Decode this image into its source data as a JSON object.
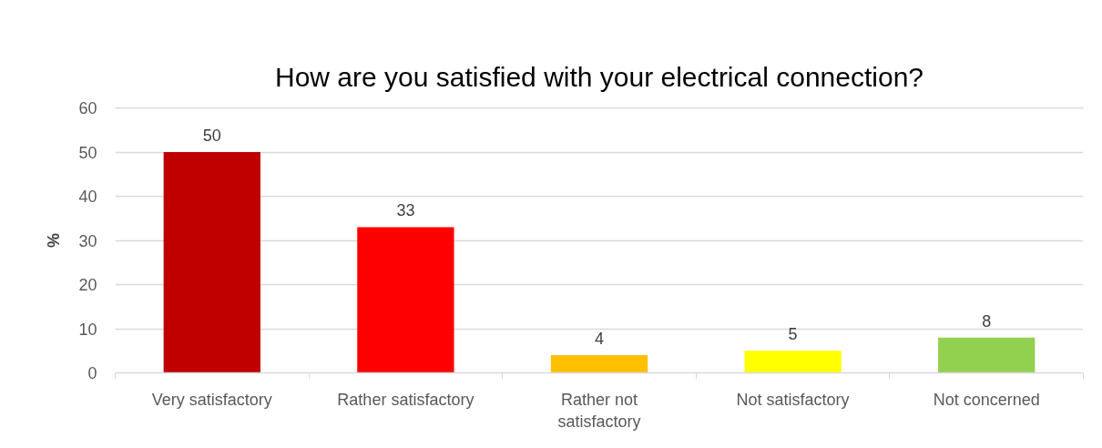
{
  "chart_data": {
    "type": "bar",
    "title": "How are you satisfied with your electrical connection?",
    "ylabel": "%",
    "categories": [
      "Very satisfactory",
      "Rather satisfactory",
      "Rather not satisfactory",
      "Not satisfactory",
      "Not concerned"
    ],
    "values": [
      50,
      33,
      4,
      5,
      8
    ],
    "colors": [
      "#c00000",
      "#ff0000",
      "#ffc000",
      "#ffff00",
      "#92d050"
    ],
    "ylim": [
      0,
      60
    ],
    "yticks": [
      0,
      10,
      20,
      30,
      40,
      50,
      60
    ],
    "grid": "y",
    "data_labels": true
  }
}
